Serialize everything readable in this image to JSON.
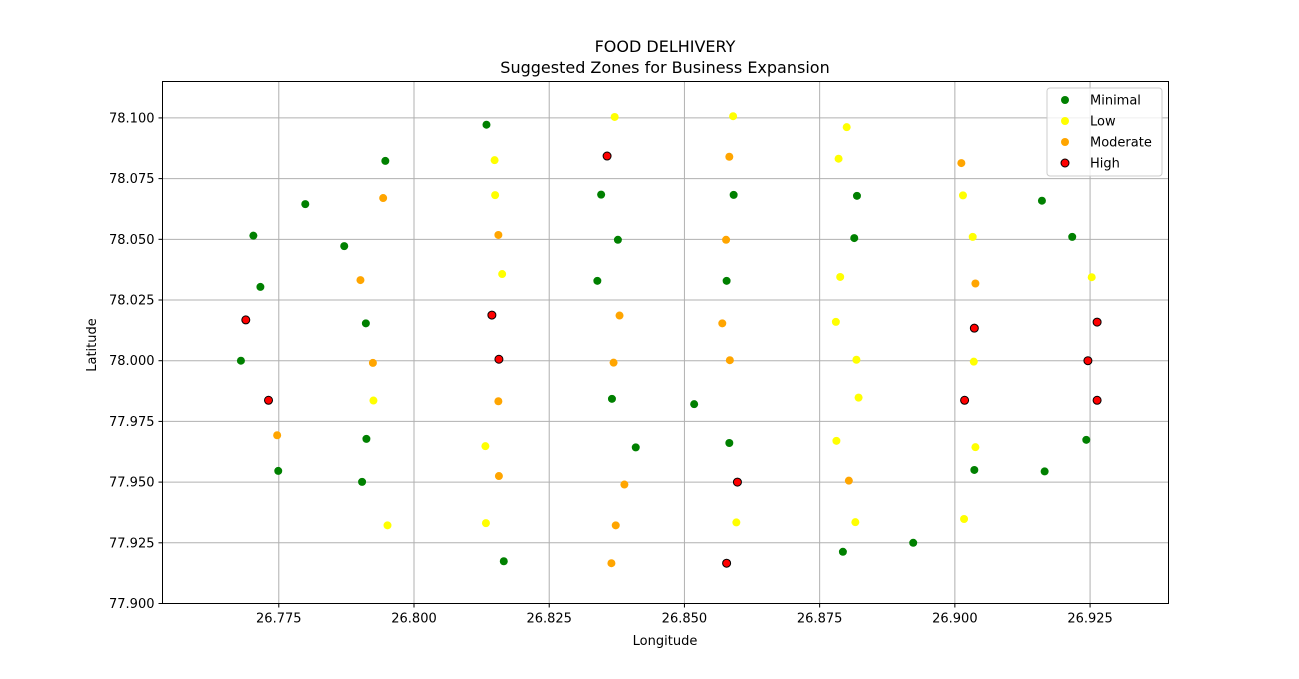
{
  "chart_data": {
    "type": "scatter",
    "title": "FOOD DELHIVERY",
    "subtitle": "Suggested Zones for Business Expansion",
    "xlabel": "Longitude",
    "ylabel": "Latitude",
    "xlim": [
      26.7535,
      26.9395
    ],
    "ylim": [
      77.9,
      78.115
    ],
    "xticks": [
      "26.775",
      "26.800",
      "26.825",
      "26.850",
      "26.875",
      "26.900",
      "26.925"
    ],
    "yticks": [
      "77.900",
      "77.925",
      "77.950",
      "77.975",
      "78.000",
      "78.025",
      "78.050",
      "78.075",
      "78.100"
    ],
    "grid": true,
    "legend_position": "top-right",
    "series": [
      {
        "name": "Minimal",
        "color": "#008000",
        "edge": "none",
        "points": [
          [
            26.8134,
            78.0972
          ],
          [
            26.7947,
            78.0823
          ],
          [
            26.7799,
            78.0645
          ],
          [
            26.8346,
            78.0684
          ],
          [
            26.8591,
            78.0683
          ],
          [
            26.8819,
            78.0679
          ],
          [
            26.9161,
            78.0659
          ],
          [
            26.7703,
            78.0515
          ],
          [
            26.7871,
            78.0472
          ],
          [
            26.8377,
            78.0498
          ],
          [
            26.8814,
            78.0505
          ],
          [
            26.9217,
            78.051
          ],
          [
            26.7716,
            78.0304
          ],
          [
            26.8339,
            78.0329
          ],
          [
            26.8578,
            78.0329
          ],
          [
            26.7911,
            78.0154
          ],
          [
            26.768,
            78.0
          ],
          [
            26.8366,
            77.9843
          ],
          [
            26.8518,
            77.9821
          ],
          [
            26.7912,
            77.9678
          ],
          [
            26.841,
            77.9643
          ],
          [
            26.8583,
            77.9661
          ],
          [
            26.9243,
            77.9674
          ],
          [
            26.7749,
            77.9546
          ],
          [
            26.9036,
            77.955
          ],
          [
            26.9166,
            77.9544
          ],
          [
            26.7904,
            77.9501
          ],
          [
            26.8166,
            77.9174
          ],
          [
            26.8793,
            77.9213
          ],
          [
            26.8923,
            77.925
          ]
        ]
      },
      {
        "name": "Low",
        "color": "#ffff00",
        "edge": "none",
        "points": [
          [
            26.8371,
            78.1004
          ],
          [
            26.859,
            78.1007
          ],
          [
            26.88,
            78.0962
          ],
          [
            26.8149,
            78.0826
          ],
          [
            26.8785,
            78.0832
          ],
          [
            26.815,
            78.0682
          ],
          [
            26.9015,
            78.0681
          ],
          [
            26.9033,
            78.051
          ],
          [
            26.8163,
            78.0357
          ],
          [
            26.8788,
            78.0345
          ],
          [
            26.9253,
            78.0344
          ],
          [
            26.878,
            78.016
          ],
          [
            26.8818,
            78.0004
          ],
          [
            26.9035,
            77.9996
          ],
          [
            26.7925,
            77.9836
          ],
          [
            26.8822,
            77.9848
          ],
          [
            26.8132,
            77.9648
          ],
          [
            26.8781,
            77.967
          ],
          [
            26.9038,
            77.9644
          ],
          [
            26.7951,
            77.9322
          ],
          [
            26.8133,
            77.9331
          ],
          [
            26.8596,
            77.9334
          ],
          [
            26.8816,
            77.9335
          ],
          [
            26.9017,
            77.9348
          ]
        ]
      },
      {
        "name": "Moderate",
        "color": "#ffa500",
        "edge": "none",
        "points": [
          [
            26.8583,
            78.084
          ],
          [
            26.9012,
            78.0814
          ],
          [
            26.7943,
            78.067
          ],
          [
            26.8156,
            78.0518
          ],
          [
            26.8577,
            78.0498
          ],
          [
            26.7901,
            78.0332
          ],
          [
            26.9038,
            78.0318
          ],
          [
            26.838,
            78.0186
          ],
          [
            26.857,
            78.0154
          ],
          [
            26.7924,
            77.9991
          ],
          [
            26.8369,
            77.9992
          ],
          [
            26.8584,
            78.0002
          ],
          [
            26.8156,
            77.9833
          ],
          [
            26.7747,
            77.9693
          ],
          [
            26.8157,
            77.9525
          ],
          [
            26.8389,
            77.949
          ],
          [
            26.8804,
            77.9506
          ],
          [
            26.8373,
            77.9322
          ],
          [
            26.8365,
            77.9166
          ]
        ]
      },
      {
        "name": "High",
        "color": "#ff0000",
        "edge": "#000000",
        "points": [
          [
            26.8357,
            78.0843
          ],
          [
            26.7689,
            78.0168
          ],
          [
            26.8144,
            78.0188
          ],
          [
            26.9036,
            78.0134
          ],
          [
            26.9263,
            78.0159
          ],
          [
            26.8157,
            78.0006
          ],
          [
            26.9246,
            78.0
          ],
          [
            26.7731,
            77.9837
          ],
          [
            26.9018,
            77.9837
          ],
          [
            26.9263,
            77.9837
          ],
          [
            26.8598,
            77.95
          ],
          [
            26.8578,
            77.9166
          ]
        ]
      }
    ]
  }
}
